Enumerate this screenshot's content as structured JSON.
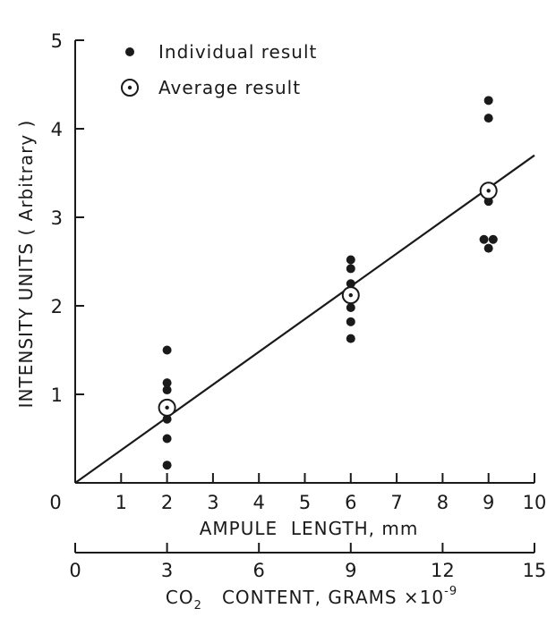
{
  "chart_data": {
    "type": "scatter",
    "title": "",
    "xlabel": "AMPULE  LENGTH, mm",
    "ylabel": "INTENSITY UNITS ( Arbitrary )",
    "xlim": [
      0,
      10
    ],
    "ylim": [
      0,
      5
    ],
    "x_ticks": [
      "0",
      "1",
      "2",
      "3",
      "4",
      "5",
      "6",
      "7",
      "8",
      "9",
      "10"
    ],
    "y_ticks": [
      "0",
      "1",
      "2",
      "3",
      "4",
      "5"
    ],
    "secondary_x_axis": {
      "label_prefix": "CO",
      "label_sub": "2",
      "label_main": "   CONTENT, GRAMS ×10",
      "label_sup": "-9",
      "range": [
        0,
        15
      ],
      "ticks": [
        "0",
        "3",
        "6",
        "9",
        "12",
        "15"
      ]
    },
    "grid": false,
    "legend_position": "top-left",
    "series": [
      {
        "name": "Individual result",
        "marker": "filled-dot",
        "points": [
          [
            2,
            1.5
          ],
          [
            2,
            1.13
          ],
          [
            2,
            1.05
          ],
          [
            2,
            0.72
          ],
          [
            2,
            0.5
          ],
          [
            2,
            0.2
          ],
          [
            6,
            2.52
          ],
          [
            6,
            2.42
          ],
          [
            6,
            2.25
          ],
          [
            6,
            1.98
          ],
          [
            6,
            1.82
          ],
          [
            6,
            1.63
          ],
          [
            9,
            4.32
          ],
          [
            9,
            4.12
          ],
          [
            9,
            3.18
          ],
          [
            8.9,
            2.75
          ],
          [
            9.1,
            2.75
          ],
          [
            9,
            2.65
          ]
        ]
      },
      {
        "name": "Average result",
        "marker": "circled-dot",
        "points": [
          [
            2,
            0.85
          ],
          [
            6,
            2.12
          ],
          [
            9,
            3.3
          ]
        ]
      }
    ],
    "fit_line": {
      "x": [
        0,
        10
      ],
      "y": [
        0,
        3.7
      ]
    }
  }
}
